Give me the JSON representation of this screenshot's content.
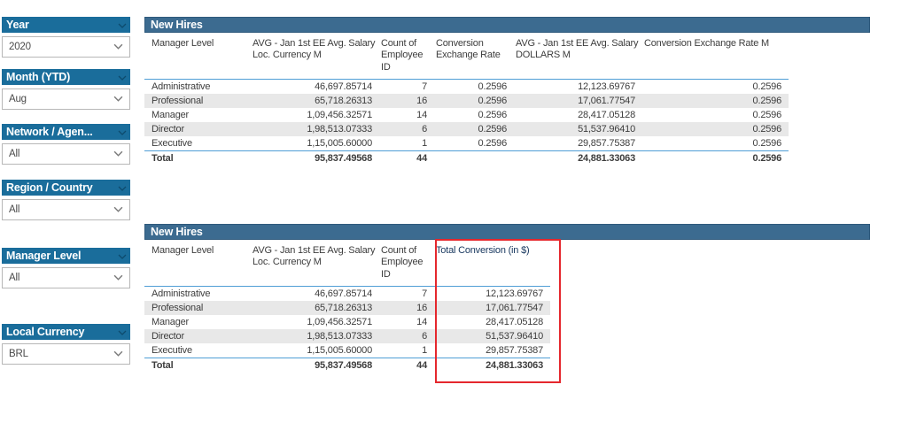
{
  "colors": {
    "sidebar_header_bg": "#1a6d9b",
    "table_title_bg": "#3c6b90",
    "separator_blue": "#4f9ed6",
    "row_alt_bg": "#e8e8e8",
    "highlight_red": "#e5272d",
    "highlight_header_text": "#17375e"
  },
  "sidebar": {
    "filters": [
      {
        "id": "year",
        "label": "Year",
        "value": "2020"
      },
      {
        "id": "month-ytd",
        "label": "Month (YTD)",
        "value": "Aug"
      },
      {
        "id": "network-agency",
        "label": "Network / Agen...",
        "value": "All"
      },
      {
        "id": "region-country",
        "label": "Region / Country",
        "value": "All"
      },
      {
        "id": "manager-level",
        "label": "Manager Level",
        "value": "All"
      },
      {
        "id": "local-currency",
        "label": "Local Currency",
        "value": "BRL"
      }
    ]
  },
  "tables": [
    {
      "title": "New Hires",
      "columns": [
        "Manager Level",
        "AVG - Jan 1st EE Avg. Salary Loc. Currency M",
        "Count of Employee ID",
        "Conversion Exchange Rate",
        "AVG - Jan 1st EE Avg. Salary DOLLARS M",
        "Conversion Exchange Rate M"
      ],
      "rows": [
        [
          "Administrative",
          "46,697.85714",
          "7",
          "0.2596",
          "12,123.69767",
          "0.2596"
        ],
        [
          "Professional",
          "65,718.26313",
          "16",
          "0.2596",
          "17,061.77547",
          "0.2596"
        ],
        [
          "Manager",
          "1,09,456.32571",
          "14",
          "0.2596",
          "28,417.05128",
          "0.2596"
        ],
        [
          "Director",
          "1,98,513.07333",
          "6",
          "0.2596",
          "51,537.96410",
          "0.2596"
        ],
        [
          "Executive",
          "1,15,005.60000",
          "1",
          "0.2596",
          "29,857.75387",
          "0.2596"
        ]
      ],
      "total": [
        "Total",
        "95,837.49568",
        "44",
        "",
        "24,881.33063",
        "0.2596"
      ]
    },
    {
      "title": "New Hires",
      "columns": [
        "Manager Level",
        "AVG - Jan 1st EE Avg. Salary Loc. Currency M",
        "Count of Employee ID",
        "Total Conversion (in $)"
      ],
      "rows": [
        [
          "Administrative",
          "46,697.85714",
          "7",
          "12,123.69767"
        ],
        [
          "Professional",
          "65,718.26313",
          "16",
          "17,061.77547"
        ],
        [
          "Manager",
          "1,09,456.32571",
          "14",
          "28,417.05128"
        ],
        [
          "Director",
          "1,98,513.07333",
          "6",
          "51,537.96410"
        ],
        [
          "Executive",
          "1,15,005.60000",
          "1",
          "29,857.75387"
        ]
      ],
      "total": [
        "Total",
        "95,837.49568",
        "44",
        "24,881.33063"
      ]
    }
  ],
  "highlight": {
    "description": "red annotation box around Total Conversion (in $) column"
  }
}
